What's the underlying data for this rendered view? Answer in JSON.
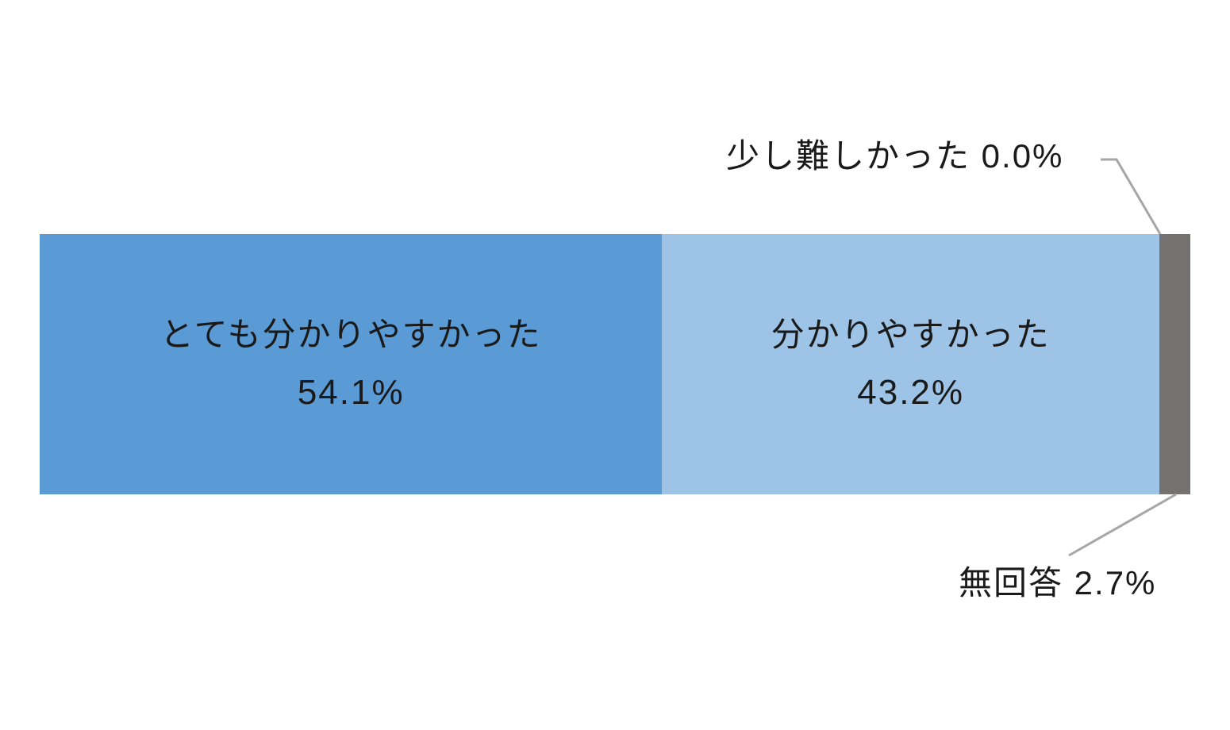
{
  "chart_data": {
    "type": "bar",
    "orientation": "horizontal-stacked",
    "title": "",
    "xlabel": "",
    "ylabel": "",
    "total": 100.0,
    "categories": [
      "とても分かりやすかった",
      "分かりやすかった",
      "少し難しかった",
      "無回答"
    ],
    "values": [
      54.1,
      43.2,
      0.0,
      2.7
    ],
    "segments": [
      {
        "label": "とても分かりやすかった",
        "value": 54.1,
        "value_label": "54.1%",
        "color": "#5b9bd5",
        "label_position": "inside"
      },
      {
        "label": "分かりやすかった",
        "value": 43.2,
        "value_label": "43.2%",
        "color": "#9dc3e6",
        "label_position": "inside"
      },
      {
        "label": "少し難しかった",
        "value": 0.0,
        "value_label": "0.0%",
        "color": null,
        "label_position": "callout-top"
      },
      {
        "label": "無回答",
        "value": 2.7,
        "value_label": "2.7%",
        "color": "#767171",
        "label_position": "callout-bottom"
      }
    ],
    "annotations": [
      {
        "text": "少し難しかった 0.0%",
        "position": "top-right",
        "points_to": "right edge of light blue segment (top)"
      },
      {
        "text": "無回答 2.7%",
        "position": "bottom-right",
        "points_to": "gray segment (bottom)"
      }
    ],
    "leader_line_color": "#a6a6a6",
    "text_color": "#1a1a1a",
    "background_color": "#ffffff",
    "legend": null,
    "grid": false
  }
}
